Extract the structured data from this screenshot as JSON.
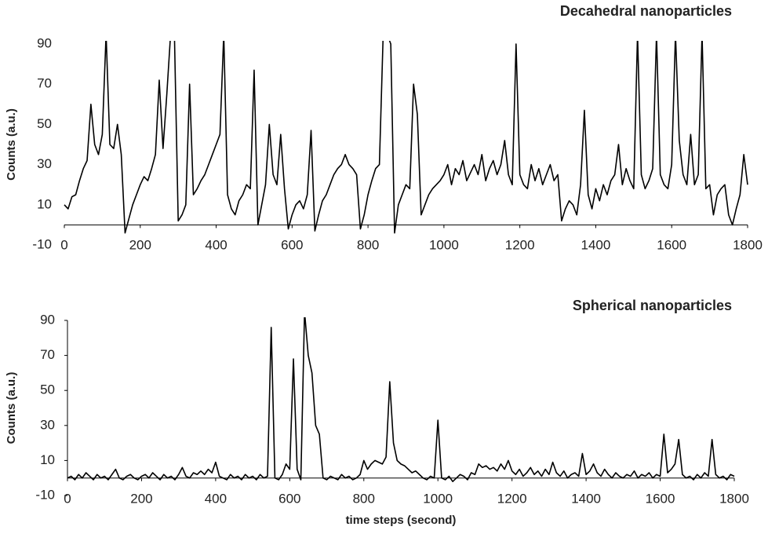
{
  "chart_data": [
    {
      "type": "line",
      "title": "Decahedral nanoparticles",
      "y_label": "Counts (a.u.)",
      "x": [
        0,
        10,
        20,
        30,
        40,
        50,
        60,
        70,
        80,
        90,
        100,
        110,
        120,
        130,
        140,
        150,
        160,
        170,
        180,
        190,
        200,
        210,
        220,
        230,
        240,
        250,
        260,
        270,
        280,
        290,
        300,
        310,
        320,
        330,
        340,
        350,
        360,
        370,
        380,
        390,
        400,
        410,
        420,
        430,
        440,
        450,
        460,
        470,
        480,
        490,
        500,
        510,
        520,
        530,
        540,
        550,
        560,
        570,
        580,
        590,
        600,
        610,
        620,
        630,
        640,
        650,
        660,
        670,
        680,
        690,
        700,
        710,
        720,
        730,
        740,
        750,
        760,
        770,
        780,
        790,
        800,
        810,
        820,
        830,
        840,
        850,
        860,
        870,
        880,
        890,
        900,
        910,
        920,
        930,
        940,
        950,
        960,
        970,
        980,
        990,
        1000,
        1010,
        1020,
        1030,
        1040,
        1050,
        1060,
        1070,
        1080,
        1090,
        1100,
        1110,
        1120,
        1130,
        1140,
        1150,
        1160,
        1170,
        1180,
        1190,
        1200,
        1210,
        1220,
        1230,
        1240,
        1250,
        1260,
        1270,
        1280,
        1290,
        1300,
        1310,
        1320,
        1330,
        1340,
        1350,
        1360,
        1370,
        1380,
        1390,
        1400,
        1410,
        1420,
        1430,
        1440,
        1450,
        1460,
        1470,
        1480,
        1490,
        1500,
        1510,
        1520,
        1530,
        1540,
        1550,
        1560,
        1570,
        1580,
        1590,
        1600,
        1610,
        1620,
        1630,
        1640,
        1650,
        1660,
        1670,
        1680,
        1690,
        1700,
        1710,
        1720,
        1730,
        1740,
        1750,
        1760,
        1770,
        1780,
        1790,
        1800
      ],
      "series": [
        {
          "color": "#000000",
          "values": [
            10,
            8,
            14,
            15,
            22,
            28,
            32,
            60,
            40,
            35,
            45,
            95,
            40,
            38,
            50,
            35,
            -4,
            3,
            10,
            15,
            20,
            24,
            22,
            28,
            35,
            72,
            38,
            65,
            95,
            95,
            2,
            5,
            10,
            70,
            15,
            18,
            22,
            25,
            30,
            35,
            40,
            45,
            95,
            15,
            8,
            5,
            12,
            15,
            20,
            18,
            77,
            0,
            10,
            20,
            50,
            25,
            20,
            45,
            18,
            -2,
            5,
            10,
            12,
            8,
            15,
            47,
            -3,
            5,
            12,
            15,
            20,
            25,
            28,
            30,
            35,
            30,
            28,
            25,
            -2,
            5,
            15,
            22,
            28,
            30,
            95,
            95,
            90,
            -4,
            10,
            15,
            20,
            18,
            70,
            55,
            5,
            10,
            15,
            18,
            20,
            22,
            25,
            30,
            20,
            28,
            25,
            32,
            22,
            26,
            30,
            25,
            35,
            22,
            28,
            32,
            25,
            30,
            42,
            25,
            20,
            90,
            25,
            20,
            18,
            30,
            22,
            28,
            20,
            25,
            30,
            22,
            25,
            2,
            8,
            12,
            10,
            5,
            20,
            57,
            15,
            8,
            18,
            12,
            20,
            15,
            22,
            25,
            40,
            20,
            28,
            22,
            18,
            95,
            25,
            18,
            22,
            28,
            95,
            25,
            20,
            18,
            30,
            95,
            42,
            25,
            20,
            45,
            20,
            25,
            95,
            18,
            20,
            5,
            15,
            18,
            20,
            5,
            0,
            8,
            15,
            35,
            20
          ]
        }
      ],
      "xlim": [
        0,
        1800
      ],
      "ylim": [
        -10,
        90
      ],
      "xticks": [
        0,
        200,
        400,
        600,
        800,
        1000,
        1200,
        1400,
        1600,
        1800
      ],
      "yticks": [
        -10,
        10,
        30,
        50,
        70,
        90
      ]
    },
    {
      "type": "line",
      "title": "Spherical nanoparticles",
      "y_label": "Counts (a.u.)",
      "x_label": "time steps (second)",
      "x": [
        0,
        10,
        20,
        30,
        40,
        50,
        60,
        70,
        80,
        90,
        100,
        110,
        120,
        130,
        140,
        150,
        160,
        170,
        180,
        190,
        200,
        210,
        220,
        230,
        240,
        250,
        260,
        270,
        280,
        290,
        300,
        310,
        320,
        330,
        340,
        350,
        360,
        370,
        380,
        390,
        400,
        410,
        420,
        430,
        440,
        450,
        460,
        470,
        480,
        490,
        500,
        510,
        520,
        530,
        540,
        550,
        560,
        570,
        580,
        590,
        600,
        610,
        620,
        630,
        640,
        650,
        660,
        670,
        680,
        690,
        700,
        710,
        720,
        730,
        740,
        750,
        760,
        770,
        780,
        790,
        800,
        810,
        820,
        830,
        840,
        850,
        860,
        870,
        880,
        890,
        900,
        910,
        920,
        930,
        940,
        950,
        960,
        970,
        980,
        990,
        1000,
        1010,
        1020,
        1030,
        1040,
        1050,
        1060,
        1070,
        1080,
        1090,
        1100,
        1110,
        1120,
        1130,
        1140,
        1150,
        1160,
        1170,
        1180,
        1190,
        1200,
        1210,
        1220,
        1230,
        1240,
        1250,
        1260,
        1270,
        1280,
        1290,
        1300,
        1310,
        1320,
        1330,
        1340,
        1350,
        1360,
        1370,
        1380,
        1390,
        1400,
        1410,
        1420,
        1430,
        1440,
        1450,
        1460,
        1470,
        1480,
        1490,
        1500,
        1510,
        1520,
        1530,
        1540,
        1550,
        1560,
        1570,
        1580,
        1590,
        1600,
        1610,
        1620,
        1630,
        1640,
        1650,
        1660,
        1670,
        1680,
        1690,
        1700,
        1710,
        1720,
        1730,
        1740,
        1750,
        1760,
        1770,
        1780,
        1790,
        1800
      ],
      "series": [
        {
          "color": "#000000",
          "values": [
            0,
            1,
            -1,
            2,
            0,
            3,
            1,
            -1,
            2,
            0,
            1,
            -1,
            2,
            5,
            0,
            -1,
            1,
            2,
            0,
            -1,
            1,
            2,
            0,
            3,
            1,
            -1,
            2,
            0,
            1,
            -1,
            2,
            6,
            1,
            0,
            3,
            2,
            4,
            2,
            5,
            3,
            9,
            1,
            0,
            -1,
            2,
            0,
            1,
            -1,
            2,
            0,
            1,
            -1,
            2,
            0,
            1,
            86,
            0,
            -1,
            2,
            8,
            5,
            68,
            5,
            -1,
            95,
            70,
            60,
            30,
            25,
            0,
            -1,
            1,
            0,
            -1,
            2,
            0,
            1,
            -1,
            0,
            2,
            10,
            5,
            8,
            10,
            9,
            8,
            12,
            55,
            20,
            10,
            8,
            7,
            5,
            3,
            4,
            2,
            0,
            -1,
            1,
            0,
            33,
            0,
            -1,
            1,
            -2,
            0,
            2,
            1,
            -1,
            3,
            2,
            8,
            6,
            7,
            5,
            6,
            4,
            8,
            5,
            10,
            4,
            2,
            5,
            1,
            3,
            6,
            2,
            4,
            1,
            5,
            2,
            9,
            3,
            1,
            4,
            0,
            2,
            3,
            1,
            14,
            2,
            4,
            8,
            3,
            1,
            5,
            2,
            0,
            3,
            1,
            0,
            2,
            1,
            4,
            0,
            2,
            1,
            3,
            0,
            2,
            1,
            25,
            3,
            5,
            8,
            22,
            2,
            0,
            1,
            -1,
            2,
            0,
            3,
            1,
            22,
            2,
            0,
            1,
            -1,
            2,
            1
          ]
        }
      ],
      "xlim": [
        0,
        1800
      ],
      "ylim": [
        -10,
        90
      ],
      "xticks": [
        0,
        200,
        400,
        600,
        800,
        1000,
        1200,
        1400,
        1600,
        1800
      ],
      "yticks": [
        -10,
        10,
        30,
        50,
        70,
        90
      ]
    }
  ]
}
